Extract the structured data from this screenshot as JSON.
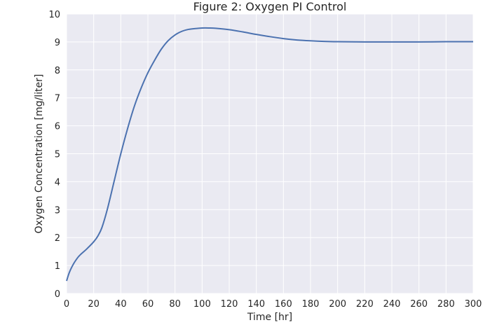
{
  "chart_data": {
    "type": "line",
    "title": "Figure 2: Oxygen PI Control",
    "xlabel": "Time [hr]",
    "ylabel": "Oxygen Concentration [mg/liter]",
    "xlim": [
      0,
      300
    ],
    "ylim": [
      0,
      10
    ],
    "xticks": [
      0,
      20,
      40,
      60,
      80,
      100,
      120,
      140,
      160,
      180,
      200,
      220,
      240,
      260,
      280,
      300
    ],
    "yticks": [
      0,
      1,
      2,
      3,
      4,
      5,
      6,
      7,
      8,
      9,
      10
    ],
    "grid": true,
    "colors": {
      "background": "#eaeaf2",
      "grid": "#ffffff",
      "line": "#4c72b0",
      "text": "#262626"
    },
    "series": [
      {
        "x": [
          0,
          2,
          5,
          8,
          10,
          15,
          20,
          23,
          26,
          30,
          35,
          40,
          45,
          50,
          55,
          60,
          65,
          70,
          75,
          80,
          85,
          90,
          95,
          100,
          105,
          110,
          120,
          130,
          140,
          150,
          160,
          170,
          180,
          190,
          200,
          220,
          240,
          260,
          280,
          300
        ],
        "y": [
          0.45,
          0.75,
          1.05,
          1.27,
          1.38,
          1.6,
          1.85,
          2.05,
          2.35,
          3.0,
          4.0,
          5.0,
          5.9,
          6.7,
          7.35,
          7.9,
          8.35,
          8.75,
          9.05,
          9.25,
          9.38,
          9.45,
          9.48,
          9.5,
          9.5,
          9.49,
          9.44,
          9.36,
          9.27,
          9.19,
          9.12,
          9.07,
          9.04,
          9.02,
          9.01,
          9.0,
          9.0,
          9.0,
          9.01,
          9.01
        ]
      }
    ]
  }
}
